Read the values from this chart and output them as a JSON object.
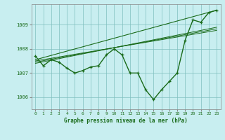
{
  "title": "Graphe pression niveau de la mer (hPa)",
  "bg_color": "#c8eef0",
  "grid_color": "#7fbfbf",
  "line_color": "#1a6b1a",
  "x_ticks": [
    0,
    1,
    2,
    3,
    4,
    5,
    6,
    7,
    8,
    9,
    10,
    11,
    12,
    13,
    14,
    15,
    16,
    17,
    18,
    19,
    20,
    21,
    22,
    23
  ],
  "ylim": [
    1005.5,
    1009.85
  ],
  "yticks": [
    1006,
    1007,
    1008,
    1009
  ],
  "main_data": [
    1007.7,
    1007.3,
    1007.55,
    1007.45,
    1007.2,
    1007.0,
    1007.1,
    1007.25,
    1007.3,
    1007.75,
    1008.0,
    1007.75,
    1007.0,
    1007.0,
    1006.3,
    1005.9,
    1006.3,
    1006.65,
    1007.0,
    1008.35,
    1009.2,
    1009.1,
    1009.5,
    1009.6
  ],
  "trend_line_full": [
    [
      0,
      1007.55
    ],
    [
      23,
      1009.6
    ]
  ],
  "converging_lines": [
    [
      [
        0,
        1007.55
      ],
      [
        23,
        1009.6
      ]
    ],
    [
      [
        0,
        1007.5
      ],
      [
        10,
        1008.05
      ]
    ],
    [
      [
        0,
        1007.45
      ],
      [
        10,
        1008.05
      ]
    ],
    [
      [
        0,
        1007.4
      ],
      [
        10,
        1008.05
      ]
    ]
  ]
}
